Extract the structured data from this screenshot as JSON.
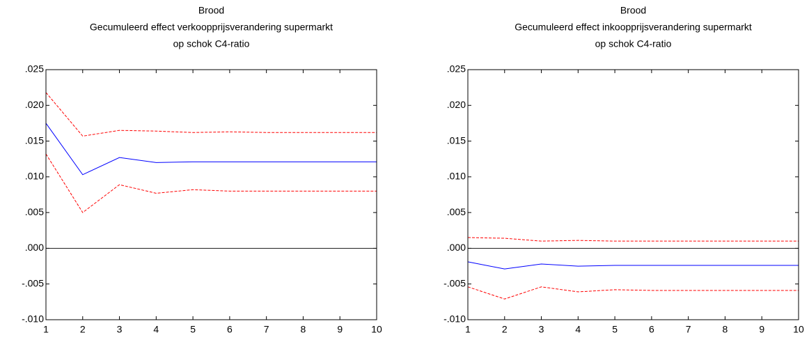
{
  "chart_data": [
    {
      "type": "line",
      "title": [
        "Brood",
        "Gecumuleerd effect verkoopprijsverandering supermarkt",
        "op schok C4-ratio"
      ],
      "x": [
        1,
        2,
        3,
        4,
        5,
        6,
        7,
        8,
        9,
        10
      ],
      "series": [
        {
          "color": "#ff0000",
          "dashed": true,
          "values": [
            0.0218,
            0.0157,
            0.0165,
            0.0164,
            0.0162,
            0.0163,
            0.0162,
            0.0162,
            0.0162,
            0.0162
          ]
        },
        {
          "color": "#0000ff",
          "dashed": false,
          "values": [
            0.0175,
            0.0103,
            0.0127,
            0.012,
            0.0121,
            0.0121,
            0.0121,
            0.0121,
            0.0121,
            0.0121
          ]
        },
        {
          "color": "#ff0000",
          "dashed": true,
          "values": [
            0.0132,
            0.005,
            0.0089,
            0.0077,
            0.0082,
            0.008,
            0.008,
            0.008,
            0.008,
            0.008
          ]
        }
      ],
      "xlim": [
        1,
        10
      ],
      "xticks": [
        1,
        2,
        3,
        4,
        5,
        6,
        7,
        8,
        9,
        10
      ],
      "ylim": [
        -0.01,
        0.025
      ],
      "yticks": [
        {
          "value": -0.01,
          "label": "-.010"
        },
        {
          "value": -0.005,
          "label": "-.005"
        },
        {
          "value": 0,
          "label": ".000"
        },
        {
          "value": 0.005,
          "label": ".005"
        },
        {
          "value": 0.01,
          "label": ".010"
        },
        {
          "value": 0.015,
          "label": ".015"
        },
        {
          "value": 0.02,
          "label": ".020"
        },
        {
          "value": 0.025,
          "label": ".025"
        }
      ],
      "zero_line": true
    },
    {
      "type": "line",
      "title": [
        "Brood",
        "Gecumuleerd effect inkoopprijsverandering supermarkt",
        "op schok C4-ratio"
      ],
      "x": [
        1,
        2,
        3,
        4,
        5,
        6,
        7,
        8,
        9,
        10
      ],
      "series": [
        {
          "color": "#ff0000",
          "dashed": true,
          "values": [
            0.0015,
            0.0014,
            0.001,
            0.0011,
            0.001,
            0.001,
            0.001,
            0.001,
            0.001,
            0.001
          ]
        },
        {
          "color": "#0000ff",
          "dashed": false,
          "values": [
            -0.0019,
            -0.0029,
            -0.0022,
            -0.0025,
            -0.0024,
            -0.0024,
            -0.0024,
            -0.0024,
            -0.0024,
            -0.0024
          ]
        },
        {
          "color": "#ff0000",
          "dashed": true,
          "values": [
            -0.0054,
            -0.0071,
            -0.0054,
            -0.0061,
            -0.0058,
            -0.0059,
            -0.0059,
            -0.0059,
            -0.0059,
            -0.0059
          ]
        }
      ],
      "xlim": [
        1,
        10
      ],
      "xticks": [
        1,
        2,
        3,
        4,
        5,
        6,
        7,
        8,
        9,
        10
      ],
      "ylim": [
        -0.01,
        0.025
      ],
      "yticks": [
        {
          "value": -0.01,
          "label": "-.010"
        },
        {
          "value": -0.005,
          "label": "-.005"
        },
        {
          "value": 0,
          "label": ".000"
        },
        {
          "value": 0.005,
          "label": ".005"
        },
        {
          "value": 0.01,
          "label": ".010"
        },
        {
          "value": 0.015,
          "label": ".015"
        },
        {
          "value": 0.02,
          "label": ".020"
        },
        {
          "value": 0.025,
          "label": ".025"
        }
      ],
      "zero_line": true
    }
  ]
}
